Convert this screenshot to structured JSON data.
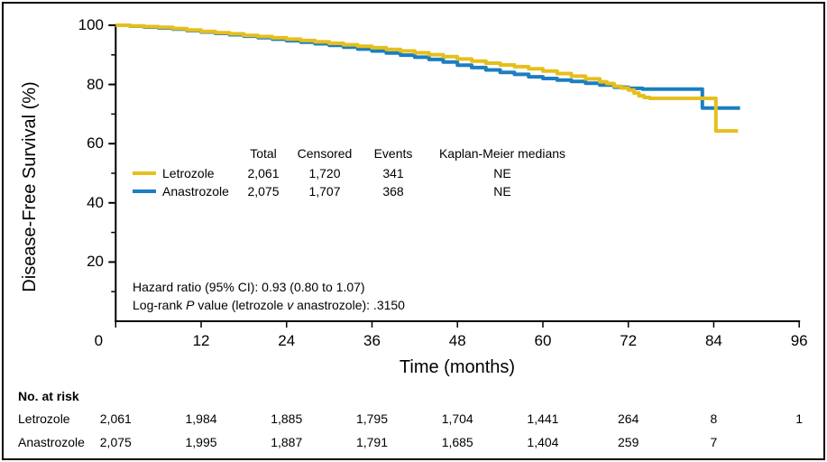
{
  "figure": {
    "y_axis_title": "Disease-Free Survival (%)",
    "x_axis_title": "Time (months)"
  },
  "legend": {
    "headers": {
      "total": "Total",
      "censored": "Censored",
      "events": "Events",
      "medians": "Kaplan-Meier medians"
    },
    "rows": [
      {
        "name": "Letrozole",
        "total": "2,061",
        "censored": "1,720",
        "events": "341",
        "median": "NE"
      },
      {
        "name": "Anastrozole",
        "total": "2,075",
        "censored": "1,707",
        "events": "368",
        "median": "NE"
      }
    ]
  },
  "stats": {
    "hazard_line": "Hazard ratio (95% CI): 0.93 (0.80 to 1.07)",
    "logrank": {
      "prefix": "Log-rank ",
      "p": "P",
      "mid": " value (letrozole ",
      "v": "v",
      "suffix": " anastrozole): .3150"
    }
  },
  "risk_table": {
    "title": "No. at risk",
    "rows": [
      {
        "name": "Letrozole",
        "values": [
          "2,061",
          "1,984",
          "1,885",
          "1,795",
          "1,704",
          "1,441",
          "264",
          "8",
          "1"
        ]
      },
      {
        "name": "Anastrozole",
        "values": [
          "2,075",
          "1,995",
          "1,887",
          "1,791",
          "1,685",
          "1,404",
          "259",
          "7",
          ""
        ]
      }
    ]
  },
  "colors": {
    "letrozole": "#E5BF1B",
    "anastrozole": "#1B7EC2",
    "axis": "#000000"
  },
  "chart_data": {
    "type": "line",
    "subtype": "kaplan-meier-step",
    "title": "",
    "xlabel": "Time (months)",
    "ylabel": "Disease-Free Survival (%)",
    "xlim": [
      0,
      96
    ],
    "ylim": [
      0,
      100
    ],
    "x_ticks": [
      0,
      12,
      24,
      36,
      48,
      60,
      72,
      84,
      96
    ],
    "y_ticks": [
      100,
      80,
      60,
      40,
      20
    ],
    "y_minor_ticks": [
      90,
      70,
      50,
      30,
      10
    ],
    "grid": false,
    "legend_position": "inside-middle",
    "series": [
      {
        "name": "Anastrozole",
        "color": "#1B7EC2",
        "points": [
          [
            0,
            100
          ],
          [
            2,
            99.7
          ],
          [
            4,
            99.4
          ],
          [
            6,
            99.1
          ],
          [
            8,
            98.7
          ],
          [
            10,
            98.2
          ],
          [
            12,
            97.7
          ],
          [
            14,
            97.25
          ],
          [
            16,
            96.8
          ],
          [
            18,
            96.3
          ],
          [
            20,
            95.8
          ],
          [
            22,
            95.3
          ],
          [
            24,
            94.8
          ],
          [
            26,
            94.3
          ],
          [
            28,
            93.75
          ],
          [
            30,
            93.2
          ],
          [
            32,
            92.6
          ],
          [
            34,
            91.95
          ],
          [
            36,
            91.3
          ],
          [
            38,
            90.6
          ],
          [
            40,
            89.9
          ],
          [
            42,
            89.2
          ],
          [
            44,
            88.45
          ],
          [
            46,
            87.6
          ],
          [
            48,
            86.5
          ],
          [
            50,
            85.7
          ],
          [
            52,
            84.9
          ],
          [
            54,
            84.1
          ],
          [
            56,
            83.4
          ],
          [
            58,
            82.6
          ],
          [
            60,
            82.0
          ],
          [
            62,
            81.5
          ],
          [
            64,
            81.0
          ],
          [
            66,
            80.4
          ],
          [
            68,
            79.8
          ],
          [
            70,
            79.1
          ],
          [
            72,
            78.7
          ],
          [
            74,
            78.4
          ],
          [
            82.4,
            72.0
          ],
          [
            87.7,
            72.0
          ]
        ]
      },
      {
        "name": "Letrozole",
        "color": "#E5BF1B",
        "points": [
          [
            0,
            100
          ],
          [
            2,
            99.8
          ],
          [
            4,
            99.55
          ],
          [
            6,
            99.3
          ],
          [
            8,
            98.9
          ],
          [
            10,
            98.4
          ],
          [
            12,
            97.9
          ],
          [
            14,
            97.5
          ],
          [
            16,
            97.1
          ],
          [
            18,
            96.6
          ],
          [
            20,
            96.2
          ],
          [
            22,
            95.75
          ],
          [
            24,
            95.3
          ],
          [
            26,
            94.85
          ],
          [
            28,
            94.4
          ],
          [
            30,
            93.9
          ],
          [
            32,
            93.4
          ],
          [
            34,
            92.9
          ],
          [
            36,
            92.4
          ],
          [
            38,
            91.85
          ],
          [
            40,
            91.3
          ],
          [
            42,
            90.7
          ],
          [
            44,
            90.05
          ],
          [
            46,
            89.4
          ],
          [
            48,
            88.6
          ],
          [
            50,
            87.9
          ],
          [
            52,
            87.2
          ],
          [
            54,
            86.6
          ],
          [
            56,
            86.0
          ],
          [
            58,
            85.3
          ],
          [
            60,
            84.5
          ],
          [
            62,
            83.7
          ],
          [
            64,
            82.8
          ],
          [
            66,
            81.9
          ],
          [
            68,
            80.9
          ],
          [
            69,
            80.3
          ],
          [
            70,
            79.4
          ],
          [
            71,
            78.8
          ],
          [
            72,
            78.1
          ],
          [
            72.8,
            77.1
          ],
          [
            73.5,
            76.2
          ],
          [
            74.2,
            75.6
          ],
          [
            75,
            75.3
          ],
          [
            84.3,
            64.3
          ],
          [
            87.4,
            64.3
          ]
        ]
      }
    ],
    "at_risk_times": [
      0,
      12,
      24,
      36,
      48,
      60,
      72,
      84,
      96
    ]
  }
}
